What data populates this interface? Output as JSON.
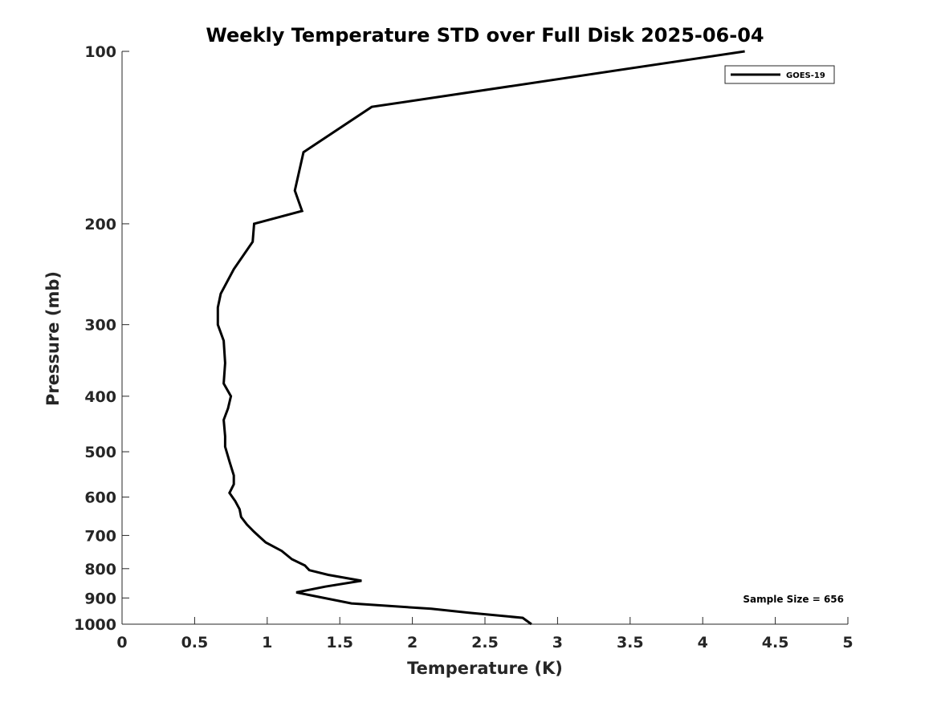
{
  "chart_data": {
    "type": "line",
    "title": "Weekly Temperature STD over Full Disk 2025-06-04",
    "xlabel": "Temperature (K)",
    "ylabel": "Pressure (mb)",
    "xlim": [
      0,
      5
    ],
    "ylim": [
      1000,
      100
    ],
    "y_scale": "log",
    "y_inverted": true,
    "grid": false,
    "legend_position": "top-right",
    "x_ticks": [
      0,
      0.5,
      1,
      1.5,
      2,
      2.5,
      3,
      3.5,
      4,
      4.5,
      5
    ],
    "x_tick_labels": [
      "0",
      "0.5",
      "1",
      "1.5",
      "2",
      "2.5",
      "3",
      "3.5",
      "4",
      "4.5",
      "5"
    ],
    "y_ticks": [
      100,
      200,
      300,
      400,
      500,
      600,
      700,
      800,
      900,
      1000
    ],
    "y_tick_labels": [
      "100",
      "200",
      "300",
      "400",
      "500",
      "600",
      "700",
      "800",
      "900",
      "1000"
    ],
    "annotation": "Sample Size = 656",
    "series": [
      {
        "name": "GOES-19",
        "color": "#000000",
        "points": [
          [
            4.29,
            100
          ],
          [
            1.72,
            125
          ],
          [
            1.25,
            150
          ],
          [
            1.19,
            175
          ],
          [
            1.24,
            190
          ],
          [
            0.91,
            200
          ],
          [
            0.9,
            215
          ],
          [
            0.77,
            240
          ],
          [
            0.68,
            265
          ],
          [
            0.66,
            280
          ],
          [
            0.66,
            300
          ],
          [
            0.7,
            320
          ],
          [
            0.71,
            350
          ],
          [
            0.7,
            380
          ],
          [
            0.75,
            400
          ],
          [
            0.73,
            420
          ],
          [
            0.7,
            440
          ],
          [
            0.71,
            470
          ],
          [
            0.71,
            490
          ],
          [
            0.74,
            520
          ],
          [
            0.77,
            550
          ],
          [
            0.77,
            570
          ],
          [
            0.74,
            590
          ],
          [
            0.78,
            610
          ],
          [
            0.81,
            630
          ],
          [
            0.82,
            650
          ],
          [
            0.86,
            670
          ],
          [
            0.91,
            690
          ],
          [
            0.95,
            705
          ],
          [
            0.99,
            720
          ],
          [
            1.1,
            745
          ],
          [
            1.17,
            770
          ],
          [
            1.26,
            790
          ],
          [
            1.29,
            805
          ],
          [
            1.42,
            820
          ],
          [
            1.65,
            840
          ],
          [
            1.4,
            860
          ],
          [
            1.2,
            880
          ],
          [
            1.58,
            920
          ],
          [
            2.13,
            940
          ],
          [
            2.39,
            955
          ],
          [
            2.76,
            975
          ],
          [
            2.82,
            1000
          ]
        ]
      }
    ]
  }
}
